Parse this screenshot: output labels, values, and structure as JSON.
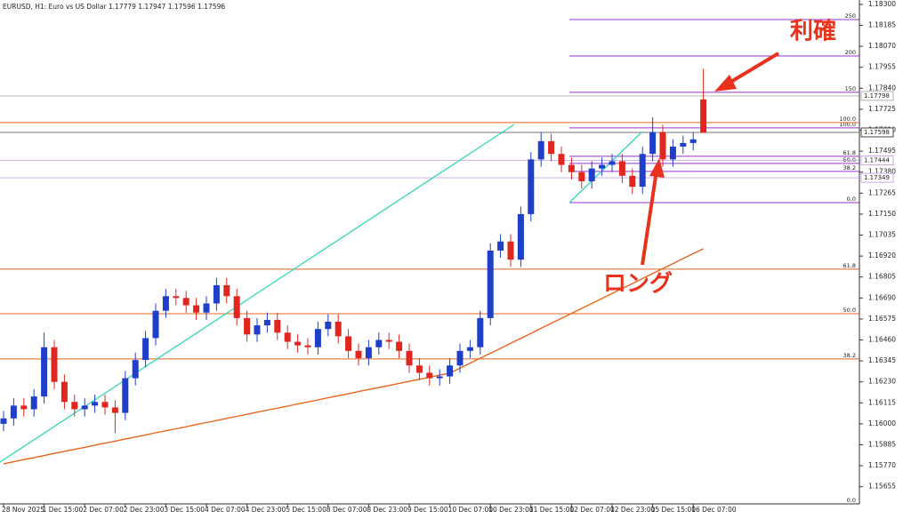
{
  "chart_data": {
    "type": "candlestick",
    "title": "EURUSD, H1:  Euro vs US Dollar  1.17779 1.17947 1.17596 1.17596",
    "up_color": "#1f3fc9",
    "down_color": "#e0261f",
    "categories": [
      "28 Nov 2025",
      null,
      null,
      null,
      "1 Dec 15:00",
      null,
      null,
      null,
      "2 Dec 07:00",
      null,
      null,
      null,
      "2 Dec 23:00",
      null,
      null,
      null,
      "3 Dec 15:00",
      null,
      null,
      null,
      "4 Dec 07:00",
      null,
      null,
      null,
      "4 Dec 23:00",
      null,
      null,
      null,
      "5 Dec 15:00",
      null,
      null,
      null,
      "8 Dec 07:00",
      null,
      null,
      null,
      "8 Dec 23:00",
      null,
      null,
      null,
      "9 Dec 15:00",
      null,
      null,
      null,
      "10 Dec 07:00",
      null,
      null,
      null,
      "10 Dec 23:00",
      null,
      null,
      null,
      "11 Dec 15:00",
      null,
      null,
      null,
      "12 Dec 07:00",
      null,
      null,
      null,
      "12 Dec 23:00",
      null,
      null,
      null,
      "15 Dec 15:00",
      null,
      null,
      null,
      "16 Dec 07:00",
      null
    ],
    "open": [
      1.16,
      1.1603,
      1.161,
      1.1608,
      1.1615,
      1.1642,
      1.1623,
      1.1612,
      1.1608,
      1.161,
      1.1612,
      1.1609,
      1.1606,
      1.1625,
      1.1635,
      1.1647,
      1.1662,
      1.167,
      1.1669,
      1.1665,
      1.1661,
      1.1666,
      1.1676,
      1.167,
      1.1658,
      1.1649,
      1.1654,
      1.1657,
      1.165,
      1.1645,
      1.1643,
      1.1642,
      1.1652,
      1.1656,
      1.1648,
      1.164,
      1.1636,
      1.1642,
      1.1646,
      1.1645,
      1.164,
      1.1632,
      1.1628,
      1.1625,
      1.1626,
      1.1632,
      1.164,
      1.1642,
      1.1658,
      1.1695,
      1.17,
      1.169,
      1.1715,
      1.1745,
      1.1755,
      1.1748,
      1.1742,
      1.1738,
      1.1733,
      1.174,
      1.1742,
      1.1744,
      1.1736,
      1.173,
      1.1748,
      1.176,
      1.1745,
      1.1752,
      1.1754,
      1.17779
    ],
    "high": [
      1.1607,
      1.1614,
      1.1614,
      1.1619,
      1.165,
      1.1646,
      1.1627,
      1.1616,
      1.1614,
      1.1616,
      1.1616,
      1.1613,
      1.1629,
      1.1639,
      1.1651,
      1.1666,
      1.1674,
      1.1674,
      1.1673,
      1.1669,
      1.167,
      1.168,
      1.168,
      1.1674,
      1.1662,
      1.1658,
      1.1661,
      1.1661,
      1.1654,
      1.1649,
      1.1647,
      1.1656,
      1.166,
      1.166,
      1.1652,
      1.1644,
      1.1646,
      1.165,
      1.165,
      1.1649,
      1.1644,
      1.1636,
      1.1632,
      1.163,
      1.1636,
      1.1644,
      1.1646,
      1.1662,
      1.1699,
      1.1704,
      1.1704,
      1.1719,
      1.1749,
      1.176,
      1.1759,
      1.1752,
      1.1746,
      1.1742,
      1.1744,
      1.1746,
      1.1748,
      1.1748,
      1.174,
      1.1752,
      1.1768,
      1.1764,
      1.1756,
      1.1758,
      1.176,
      1.17947
    ],
    "low": [
      1.1596,
      1.1599,
      1.1604,
      1.1604,
      1.1611,
      1.1619,
      1.1608,
      1.1604,
      1.1604,
      1.1606,
      1.1605,
      1.1595,
      1.1602,
      1.1621,
      1.1631,
      1.1643,
      1.1658,
      1.1665,
      1.1661,
      1.1657,
      1.1657,
      1.1662,
      1.1666,
      1.1654,
      1.1645,
      1.1645,
      1.165,
      1.1646,
      1.1641,
      1.1639,
      1.1638,
      1.1638,
      1.1648,
      1.1644,
      1.1636,
      1.1632,
      1.1632,
      1.1638,
      1.1641,
      1.1636,
      1.1628,
      1.1624,
      1.1621,
      1.1621,
      1.1622,
      1.1628,
      1.1636,
      1.1638,
      1.1654,
      1.1691,
      1.1686,
      1.1686,
      1.1711,
      1.1741,
      1.1744,
      1.1738,
      1.1734,
      1.1729,
      1.1729,
      1.1736,
      1.1738,
      1.1732,
      1.1726,
      1.1726,
      1.1744,
      1.1741,
      1.1741,
      1.1748,
      1.175,
      1.17596
    ],
    "close": [
      1.1603,
      1.161,
      1.1608,
      1.1615,
      1.1642,
      1.1623,
      1.1612,
      1.1608,
      1.161,
      1.1612,
      1.1609,
      1.1606,
      1.1625,
      1.1635,
      1.1647,
      1.1662,
      1.167,
      1.1669,
      1.1665,
      1.1661,
      1.1666,
      1.1676,
      1.167,
      1.1658,
      1.1649,
      1.1654,
      1.1657,
      1.165,
      1.1645,
      1.1643,
      1.1642,
      1.1652,
      1.1656,
      1.1648,
      1.164,
      1.1636,
      1.1642,
      1.1646,
      1.1645,
      1.164,
      1.1632,
      1.1628,
      1.1625,
      1.1626,
      1.1632,
      1.164,
      1.1642,
      1.1658,
      1.1695,
      1.17,
      1.169,
      1.1715,
      1.1745,
      1.1755,
      1.1748,
      1.1742,
      1.1738,
      1.1733,
      1.174,
      1.1742,
      1.1744,
      1.1736,
      1.173,
      1.1748,
      1.176,
      1.1745,
      1.1752,
      1.1754,
      1.1756,
      1.17596
    ],
    "series": [
      {
        "color": "#e8651c",
        "values": [
          1.15781,
          1.15792,
          1.15804,
          1.15815,
          1.15826,
          1.15838,
          1.15849,
          1.1586,
          1.15871,
          1.15883,
          1.15894,
          1.15905,
          1.15917,
          1.15928,
          1.15939,
          1.15951,
          1.15962,
          1.15973,
          1.15984,
          1.15996,
          1.16007,
          1.16018,
          1.1603,
          1.16041,
          1.16052,
          1.16064,
          1.16075,
          1.16086,
          1.16097,
          1.16109,
          1.1612,
          1.16131,
          1.16143,
          1.16154,
          1.16165,
          1.16177,
          1.16188,
          1.16199,
          1.1621,
          1.16222,
          1.16233,
          1.16244,
          1.16256,
          1.16267,
          1.16278,
          1.16305,
          1.16333,
          1.1636,
          1.16387,
          1.16414,
          1.16442,
          1.16469,
          1.16496,
          1.16524,
          1.16551,
          1.16578,
          1.16606,
          1.16633,
          1.1666,
          1.16687,
          1.16715,
          1.16742,
          1.16769,
          1.16797,
          1.16824,
          1.16851,
          1.16878,
          1.16906,
          1.16933,
          1.1696
        ]
      }
    ],
    "fibonacci": [
      {
        "color": "#9b30d0",
        "levels": [
          {
            "label": "250",
            "price": 1.18217
          },
          {
            "label": "200",
            "price": 1.18017
          },
          {
            "label": "150",
            "price": 1.17818
          },
          {
            "label": "100.0",
            "price": 1.17623
          },
          {
            "label": "61.8",
            "price": 1.17467
          },
          {
            "label": "50.0",
            "price": 1.17428
          },
          {
            "label": "38.2",
            "price": 1.17384
          },
          {
            "label": "0.0",
            "price": 1.17213
          }
        ]
      },
      {
        "color": "#e8651c",
        "levels": [
          {
            "label": "100.0",
            "price": 1.17652
          },
          {
            "label": "61.8",
            "price": 1.16848
          },
          {
            "label": "50.0",
            "price": 1.16604
          },
          {
            "label": "38.2",
            "price": 1.16356
          },
          {
            "label": "0.0",
            "price": 1.15561
          }
        ]
      }
    ],
    "price_labels": [
      {
        "value": 1.17798,
        "label": "1.17798",
        "color": "#b0b0b0"
      },
      {
        "value": 1.17598,
        "label": "1.17598",
        "color": "#444444"
      },
      {
        "value": 1.17444,
        "label": "1.17444",
        "color": "#c9a7e6"
      },
      {
        "value": 1.17349,
        "label": "1.17349",
        "color": "#c9a7e6"
      }
    ],
    "annotations": [
      "利確",
      "ロング"
    ],
    "ylim": [
      1.15561,
      1.18324
    ],
    "yticks": [
      {
        "value": 1.183,
        "label": "1.18300"
      },
      {
        "value": 1.18185,
        "label": "1.18185"
      },
      {
        "value": 1.1807,
        "label": "1.18070"
      },
      {
        "value": 1.17955,
        "label": "1.17955"
      },
      {
        "value": 1.1784,
        "label": "1.17840"
      },
      {
        "value": 1.17725,
        "label": "1.17725"
      },
      {
        "value": 1.1761,
        "label": "1.17610"
      },
      {
        "value": 1.17495,
        "label": "1.17495"
      },
      {
        "value": 1.1738,
        "label": "1.17380"
      },
      {
        "value": 1.17265,
        "label": "1.17265"
      },
      {
        "value": 1.1715,
        "label": "1.17150"
      },
      {
        "value": 1.17035,
        "label": "1.17035"
      },
      {
        "value": 1.1692,
        "label": "1.16920"
      },
      {
        "value": 1.16805,
        "label": "1.16805"
      },
      {
        "value": 1.1669,
        "label": "1.16690"
      },
      {
        "value": 1.16575,
        "label": "1.16575"
      },
      {
        "value": 1.1646,
        "label": "1.16460"
      },
      {
        "value": 1.16345,
        "label": "1.16345"
      },
      {
        "value": 1.1623,
        "label": "1.16230"
      },
      {
        "value": 1.16115,
        "label": "1.16115"
      },
      {
        "value": 1.16,
        "label": "1.16000"
      },
      {
        "value": 1.15885,
        "label": "1.15885"
      },
      {
        "value": 1.1577,
        "label": "1.15770"
      },
      {
        "value": 1.15655,
        "label": "1.15655"
      }
    ]
  }
}
